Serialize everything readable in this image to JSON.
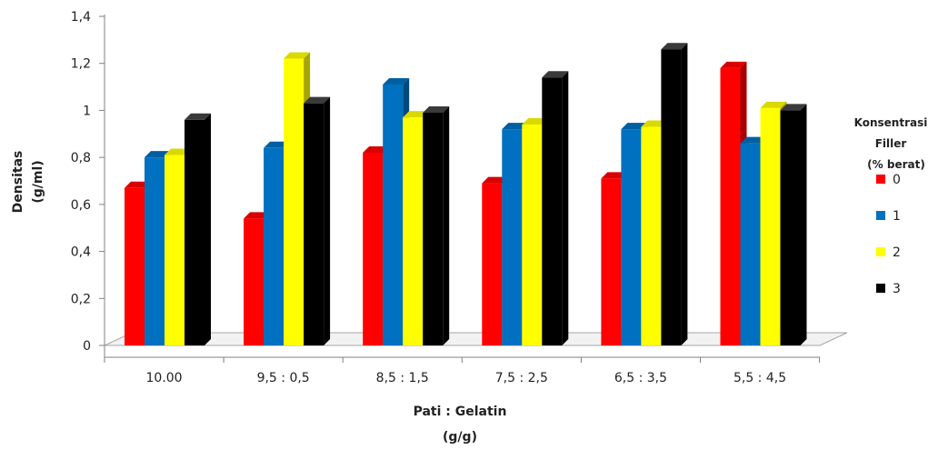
{
  "chart_data": {
    "type": "bar",
    "style": "3d-clustered-column",
    "categories": [
      "10.00",
      "9,5 : 0,5",
      "8,5 : 1,5",
      "7,5 : 2,5",
      "6,5 : 3,5",
      "5,5 : 4,5"
    ],
    "series": [
      {
        "name": "0",
        "color": "#ff0000",
        "values": [
          0.67,
          0.54,
          0.82,
          0.69,
          0.71,
          1.18
        ]
      },
      {
        "name": "1",
        "color": "#0070c0",
        "values": [
          0.8,
          0.84,
          1.11,
          0.92,
          0.92,
          0.86
        ]
      },
      {
        "name": "2",
        "color": "#ffff00",
        "values": [
          0.81,
          1.22,
          0.97,
          0.94,
          0.93,
          1.01
        ]
      },
      {
        "name": "3",
        "color": "#000000",
        "values": [
          0.96,
          1.03,
          0.99,
          1.14,
          1.26,
          1.0
        ]
      }
    ],
    "xlabel_lines": [
      "Pati : Gelatin",
      "(g/g)"
    ],
    "ylabel_lines": [
      "Densitas",
      "(g/ml)"
    ],
    "ylim": [
      0,
      1.4
    ],
    "yticks": [
      "0",
      "0,2",
      "0,4",
      "0,6",
      "0,8",
      "1",
      "1,2",
      "1,4"
    ],
    "grid": false,
    "legend": {
      "placement": "right",
      "title_lines": [
        "Konsentrasi",
        "Filler",
        "(% berat)"
      ]
    }
  }
}
